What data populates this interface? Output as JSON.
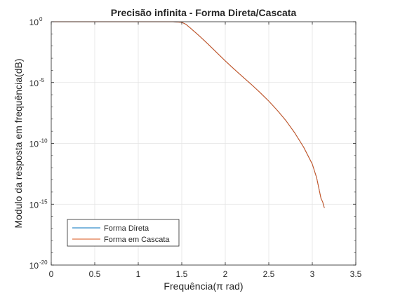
{
  "chart_data": {
    "type": "line",
    "title": "Precisão infinita - Forma Direta/Cascata",
    "xlabel": "Frequência(π rad)",
    "ylabel": "Modulo da resposta em frequência(dB)",
    "xlim": [
      0,
      3.5
    ],
    "ylim": [
      1e-20,
      1
    ],
    "yscale": "log",
    "grid": true,
    "legend_position": "bottom-left",
    "x_ticks": [
      "0",
      "0.5",
      "1",
      "1.5",
      "2",
      "2.5",
      "3",
      "3.5"
    ],
    "y_ticks": [
      {
        "base": "10",
        "exp": "0"
      },
      {
        "base": "10",
        "exp": "-5"
      },
      {
        "base": "10",
        "exp": "-10"
      },
      {
        "base": "10",
        "exp": "-15"
      },
      {
        "base": "10",
        "exp": "-20"
      }
    ],
    "series": [
      {
        "name": "Forma Direta",
        "color": "#0072BD",
        "x": [
          0,
          0.5,
          1.0,
          1.4,
          1.5,
          1.55,
          1.6,
          1.7,
          1.8,
          1.9,
          2.0,
          2.1,
          2.2,
          2.3,
          2.4,
          2.5,
          2.6,
          2.7,
          2.8,
          2.9,
          3.0,
          3.05,
          3.1,
          3.12,
          3.13,
          3.135,
          3.14
        ],
        "y": [
          1,
          1,
          1,
          1,
          0.9,
          0.6,
          0.3,
          0.07,
          0.015,
          0.003,
          0.0006,
          0.00013,
          3e-05,
          7e-06,
          1.5e-06,
          3e-07,
          5e-08,
          7e-09,
          7e-10,
          5e-11,
          2e-12,
          1.5e-13,
          3e-15,
          1.5e-15,
          8e-16,
          6e-16,
          5e-16
        ]
      },
      {
        "name": "Forma em Cascata",
        "color": "#D95319",
        "x": [
          0,
          0.5,
          1.0,
          1.4,
          1.5,
          1.55,
          1.6,
          1.7,
          1.8,
          1.9,
          2.0,
          2.1,
          2.2,
          2.3,
          2.4,
          2.5,
          2.6,
          2.7,
          2.8,
          2.9,
          3.0,
          3.05,
          3.1,
          3.12,
          3.13,
          3.135,
          3.14
        ],
        "y": [
          1,
          1,
          1,
          1,
          0.9,
          0.6,
          0.3,
          0.07,
          0.015,
          0.003,
          0.0006,
          0.00013,
          3e-05,
          7e-06,
          1.5e-06,
          3e-07,
          5e-08,
          7e-09,
          7e-10,
          5e-11,
          2e-12,
          1.5e-13,
          3e-15,
          1.5e-15,
          8e-16,
          6e-16,
          5e-16
        ]
      }
    ]
  }
}
